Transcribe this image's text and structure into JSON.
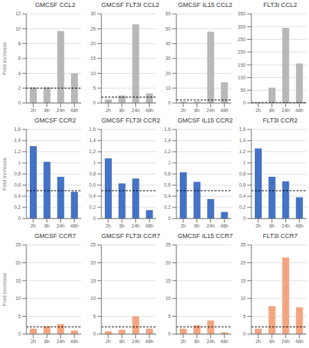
{
  "chart_data": [
    {
      "type": "bar",
      "title": "GMCSF CCL2",
      "ylabel": "Fold increase",
      "categories": [
        "2h",
        "8h",
        "24h",
        "48h"
      ],
      "values": [
        2.1,
        2.1,
        9.7,
        4.0
      ],
      "color": "#b8b8b8",
      "ylim": [
        0,
        12
      ],
      "yticks": [
        0,
        2,
        4,
        6,
        8,
        10,
        12
      ],
      "hline": 2.0,
      "grid": true
    },
    {
      "type": "bar",
      "title": "GMCSF FLT3I CCL2",
      "categories": [
        "2h",
        "8h",
        "24h",
        "48h"
      ],
      "values": [
        1.2,
        2.5,
        26.5,
        3.2
      ],
      "color": "#b8b8b8",
      "ylim": [
        0,
        30
      ],
      "yticks": [
        0,
        5,
        10,
        15,
        20,
        25,
        30
      ],
      "hline": 2.0,
      "grid": true
    },
    {
      "type": "bar",
      "title": "GMCSF IL15 CCL2",
      "categories": [
        "2h",
        "8h",
        "24h",
        "48h"
      ],
      "values": [
        1.0,
        1.0,
        48.0,
        14.0
      ],
      "color": "#b8b8b8",
      "ylim": [
        0,
        60
      ],
      "yticks": [
        0,
        10,
        20,
        30,
        40,
        50,
        60
      ],
      "hline": 2.0,
      "grid": true
    },
    {
      "type": "bar",
      "title": "FLT3I CCL2",
      "categories": [
        "2h",
        "8h",
        "24h",
        "48h"
      ],
      "values": [
        0.5,
        60.0,
        295.0,
        155.0
      ],
      "color": "#b8b8b8",
      "ylim": [
        0,
        350
      ],
      "yticks": [
        0,
        50,
        100,
        150,
        200,
        250,
        300,
        350
      ],
      "hline": 2.0,
      "grid": true
    },
    {
      "type": "bar",
      "title": "GMCSF CCR2",
      "ylabel": "Fold increase",
      "categories": [
        "2h",
        "8h",
        "24h",
        "48h"
      ],
      "values": [
        1.3,
        1.02,
        0.75,
        0.48
      ],
      "color": "#4472c4",
      "ylim": [
        0,
        1.6
      ],
      "yticks": [
        0,
        {
          "value": 0.2,
          "label": "0,2"
        },
        {
          "value": 0.4,
          "label": "0,4"
        },
        {
          "value": 0.6,
          "label": "0,6"
        },
        {
          "value": 0.8,
          "label": "0,8"
        },
        1,
        {
          "value": 1.2,
          "label": "1,2"
        },
        {
          "value": 1.4,
          "label": "1,4"
        },
        {
          "value": 1.6,
          "label": "1,6"
        }
      ],
      "hline": 0.5,
      "grid": true
    },
    {
      "type": "bar",
      "title": "GMCSF FLT3I CCR2",
      "categories": [
        "2h",
        "8h",
        "24h",
        "48h"
      ],
      "values": [
        1.08,
        0.63,
        0.72,
        0.15
      ],
      "color": "#4472c4",
      "ylim": [
        0,
        1.6
      ],
      "yticks": [
        0,
        {
          "value": 0.2,
          "label": "0,2"
        },
        {
          "value": 0.4,
          "label": "0,4"
        },
        {
          "value": 0.6,
          "label": "0,6"
        },
        {
          "value": 0.8,
          "label": "0,8"
        },
        1,
        {
          "value": 1.2,
          "label": "1,2"
        },
        {
          "value": 1.4,
          "label": "1,4"
        },
        {
          "value": 1.6,
          "label": "1,6"
        }
      ],
      "hline": 0.5,
      "grid": true
    },
    {
      "type": "bar",
      "title": "GMCSF IL15 CCR2",
      "categories": [
        "2h",
        "8h",
        "24h",
        "48h"
      ],
      "values": [
        0.83,
        0.66,
        0.35,
        0.12
      ],
      "color": "#4472c4",
      "ylim": [
        0,
        1.6
      ],
      "yticks": [
        0,
        {
          "value": 0.2,
          "label": "0,2"
        },
        {
          "value": 0.4,
          "label": "0,4"
        },
        {
          "value": 0.6,
          "label": "0,6"
        },
        {
          "value": 0.8,
          "label": "0,8"
        },
        1,
        {
          "value": 1.2,
          "label": "1,2"
        },
        {
          "value": 1.4,
          "label": "1,4"
        },
        {
          "value": 1.6,
          "label": "1,6"
        }
      ],
      "hline": 0.5,
      "grid": true
    },
    {
      "type": "bar",
      "title": "FLT3I CCR2",
      "categories": [
        "2h",
        "8h",
        "24h",
        "48h"
      ],
      "values": [
        1.26,
        0.75,
        0.67,
        0.38
      ],
      "color": "#4472c4",
      "ylim": [
        0,
        1.6
      ],
      "yticks": [
        0,
        {
          "value": 0.2,
          "label": "0,2"
        },
        {
          "value": 0.4,
          "label": "0,4"
        },
        {
          "value": 0.6,
          "label": "0,6"
        },
        {
          "value": 0.8,
          "label": "0,8"
        },
        1,
        {
          "value": 1.2,
          "label": "1,2"
        },
        {
          "value": 1.4,
          "label": "1,4"
        },
        {
          "value": 1.6,
          "label": "1,6"
        }
      ],
      "hline": 0.5,
      "grid": true
    },
    {
      "type": "bar",
      "title": "GMCSF CCR7",
      "ylabel": "Fold increase",
      "categories": [
        "2h",
        "8h",
        "24h",
        "48h"
      ],
      "values": [
        1.5,
        2.2,
        2.8,
        1.0
      ],
      "color": "#f4a580",
      "ylim": [
        0,
        25
      ],
      "yticks": [
        0,
        5,
        10,
        15,
        20,
        25
      ],
      "hline": 2.0,
      "grid": true
    },
    {
      "type": "bar",
      "title": "GMCSF FLT3I CCR7",
      "categories": [
        "2h",
        "8h",
        "24h",
        "48h"
      ],
      "values": [
        0.8,
        1.2,
        5.0,
        1.5
      ],
      "color": "#f4a580",
      "ylim": [
        0,
        25
      ],
      "yticks": [
        0,
        5,
        10,
        15,
        20,
        25
      ],
      "hline": 2.0,
      "grid": true
    },
    {
      "type": "bar",
      "title": "GMCSF IL15 CCR7",
      "categories": [
        "2h",
        "8h",
        "24h",
        "48h"
      ],
      "values": [
        1.5,
        2.5,
        3.8,
        0.5
      ],
      "color": "#f4a580",
      "ylim": [
        0,
        25
      ],
      "yticks": [
        0,
        5,
        10,
        15,
        20,
        25
      ],
      "hline": 2.0,
      "grid": true
    },
    {
      "type": "bar",
      "title": "FLT3I CCR7",
      "categories": [
        "2h",
        "8h",
        "24h",
        "48h"
      ],
      "values": [
        1.5,
        7.8,
        21.5,
        7.5
      ],
      "color": "#f4a580",
      "ylim": [
        0,
        25
      ],
      "yticks": [
        0,
        5,
        10,
        15,
        20,
        25
      ],
      "hline": 2.0,
      "grid": true
    }
  ]
}
